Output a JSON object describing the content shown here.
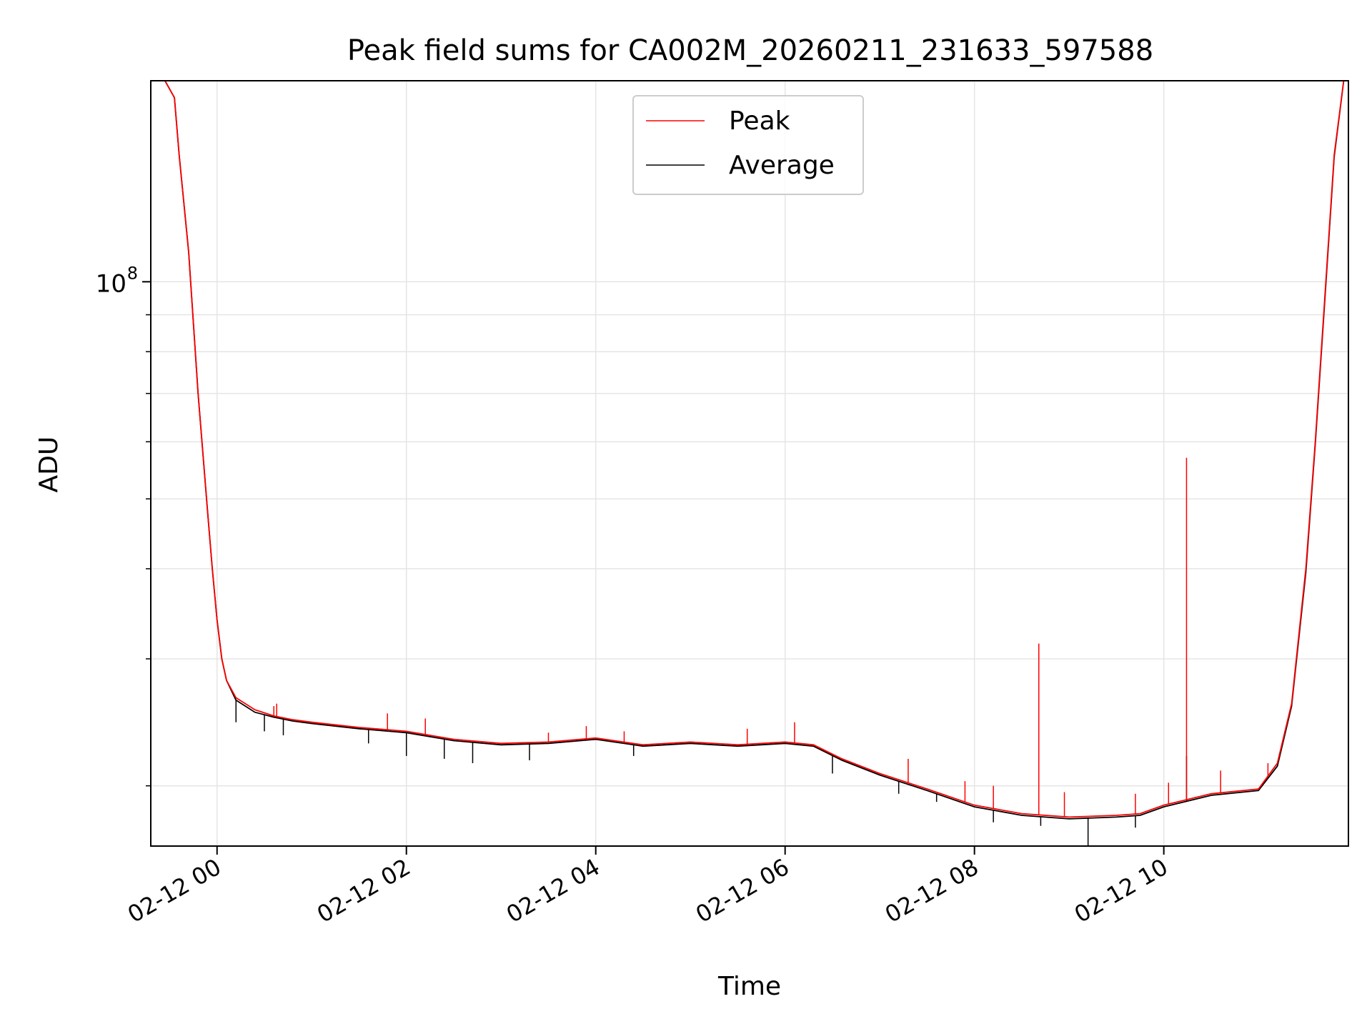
{
  "chart_data": {
    "type": "line",
    "title": "Peak field sums for CA002M_20260211_231633_597588",
    "xlabel": "Time",
    "ylabel": "ADU",
    "y_scale": "log",
    "ylim": [
      16500000,
      190000000
    ],
    "xlim_hours": [
      -0.7,
      11.95
    ],
    "grid": true,
    "legend_position": "top-center",
    "x_ticks": [
      {
        "hour": 0,
        "label": "02-12 00"
      },
      {
        "hour": 2,
        "label": "02-12 02"
      },
      {
        "hour": 4,
        "label": "02-12 04"
      },
      {
        "hour": 6,
        "label": "02-12 06"
      },
      {
        "hour": 8,
        "label": "02-12 08"
      },
      {
        "hour": 10,
        "label": "02-12 10"
      }
    ],
    "y_major_tick": {
      "value": 100000000,
      "base": "10",
      "exponent": "8"
    },
    "y_minor_ticks": [
      20000000,
      30000000,
      40000000,
      50000000,
      60000000,
      70000000,
      80000000,
      90000000,
      200000000
    ],
    "series": [
      {
        "name": "Peak",
        "color": "#ff0000",
        "x_hours": [
          -0.55,
          -0.45,
          -0.4,
          -0.3,
          -0.2,
          -0.1,
          -0.05,
          0.0,
          0.05,
          0.1,
          0.2,
          0.4,
          0.6,
          0.8,
          1.0,
          1.5,
          2.0,
          2.5,
          3.0,
          3.5,
          4.0,
          4.5,
          5.0,
          5.5,
          6.0,
          6.3,
          6.6,
          7.0,
          7.5,
          8.0,
          8.5,
          9.0,
          9.5,
          9.75,
          10.0,
          10.5,
          11.0,
          11.2,
          11.35,
          11.5,
          11.6,
          11.7,
          11.8,
          11.9
        ],
        "values": [
          200000000,
          180000000,
          150000000,
          110000000,
          70000000,
          48000000,
          40000000,
          34000000,
          30000000,
          28000000,
          26500000,
          25500000,
          25000000,
          24700000,
          24500000,
          24100000,
          23800000,
          23200000,
          22900000,
          23000000,
          23300000,
          22800000,
          23000000,
          22800000,
          23000000,
          22800000,
          21800000,
          20800000,
          19800000,
          18800000,
          18300000,
          18100000,
          18200000,
          18300000,
          18800000,
          19500000,
          19800000,
          21500000,
          26000000,
          40000000,
          60000000,
          95000000,
          150000000,
          200000000
        ],
        "spikes": [
          [
            0.6,
            25800000
          ],
          [
            0.63,
            26000000
          ],
          [
            1.8,
            25200000
          ],
          [
            2.2,
            24800000
          ],
          [
            3.5,
            23700000
          ],
          [
            3.9,
            24200000
          ],
          [
            4.3,
            23800000
          ],
          [
            5.6,
            24000000
          ],
          [
            6.1,
            24500000
          ],
          [
            7.3,
            21800000
          ],
          [
            7.9,
            20300000
          ],
          [
            8.2,
            20000000
          ],
          [
            8.68,
            31500000
          ],
          [
            8.95,
            19600000
          ],
          [
            9.7,
            19500000
          ],
          [
            10.05,
            20200000
          ],
          [
            10.24,
            57000000
          ],
          [
            10.6,
            21000000
          ],
          [
            11.1,
            21500000
          ]
        ]
      },
      {
        "name": "Average",
        "color": "#000000",
        "x_hours": [
          -0.55,
          -0.45,
          -0.4,
          -0.3,
          -0.2,
          -0.1,
          -0.05,
          0.0,
          0.05,
          0.1,
          0.2,
          0.4,
          0.6,
          0.8,
          1.0,
          1.5,
          2.0,
          2.5,
          3.0,
          3.5,
          4.0,
          4.5,
          5.0,
          5.5,
          6.0,
          6.3,
          6.6,
          7.0,
          7.5,
          8.0,
          8.5,
          9.0,
          9.5,
          9.75,
          10.0,
          10.5,
          11.0,
          11.2,
          11.35,
          11.5,
          11.6,
          11.7,
          11.8,
          11.9
        ],
        "values": [
          200000000,
          180000000,
          150000000,
          110000000,
          70000000,
          48000000,
          40000000,
          34000000,
          30000000,
          28000000,
          26300000,
          25300000,
          24900000,
          24600000,
          24400000,
          24000000,
          23700000,
          23100000,
          22800000,
          22900000,
          23200000,
          22700000,
          22900000,
          22700000,
          22900000,
          22700000,
          21700000,
          20700000,
          19700000,
          18700000,
          18200000,
          18000000,
          18100000,
          18200000,
          18700000,
          19400000,
          19700000,
          21300000,
          25800000,
          39500000,
          59500000,
          94000000,
          149000000,
          200000000
        ],
        "dips": [
          [
            0.2,
            24500000
          ],
          [
            0.5,
            23800000
          ],
          [
            0.7,
            23500000
          ],
          [
            1.6,
            22900000
          ],
          [
            2.0,
            22000000
          ],
          [
            2.4,
            21800000
          ],
          [
            2.7,
            21500000
          ],
          [
            3.3,
            21700000
          ],
          [
            4.4,
            22000000
          ],
          [
            6.5,
            20800000
          ],
          [
            7.2,
            19500000
          ],
          [
            7.6,
            19000000
          ],
          [
            8.2,
            17800000
          ],
          [
            8.7,
            17600000
          ],
          [
            9.2,
            16500000
          ],
          [
            9.7,
            17500000
          ],
          [
            10.24,
            22000000
          ]
        ]
      }
    ]
  }
}
